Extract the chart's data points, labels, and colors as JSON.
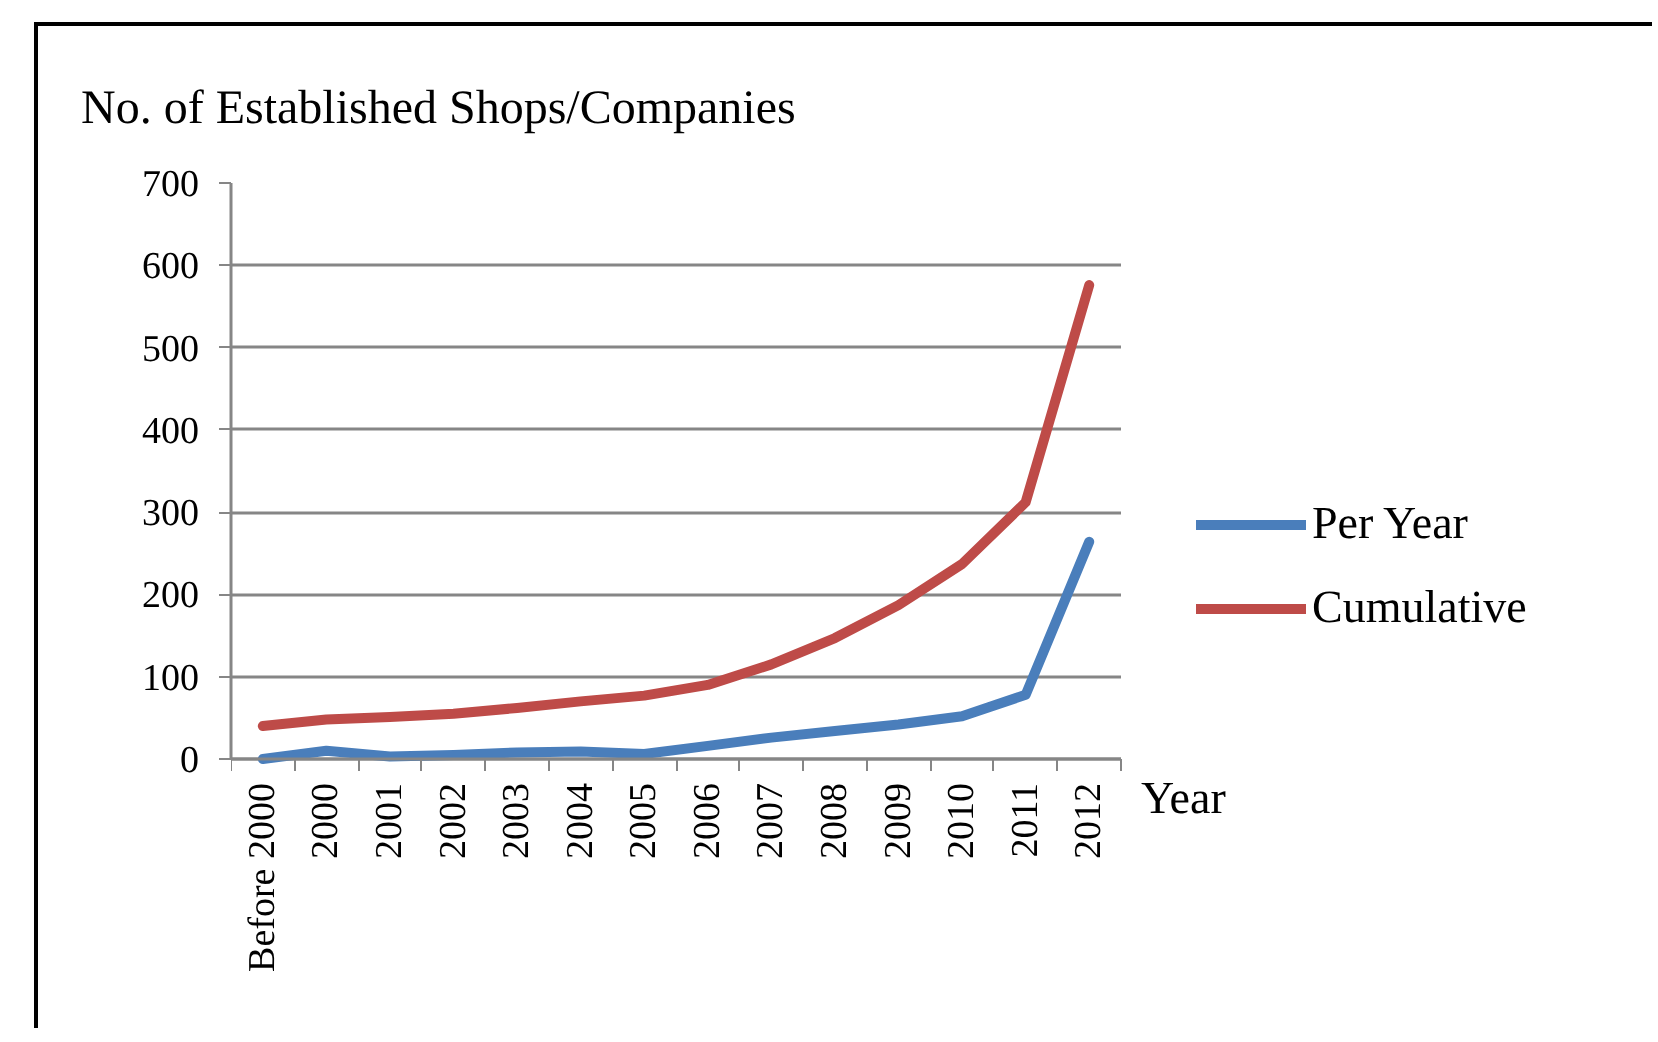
{
  "chart_data": {
    "type": "line",
    "ylabel": "No. of Established Shops/Companies",
    "xlabel": "Year",
    "categories": [
      "Before 2000",
      "2000",
      "2001",
      "2002",
      "2003",
      "2004",
      "2005",
      "2006",
      "2007",
      "2008",
      "2009",
      "2010",
      "2011",
      "2012"
    ],
    "series": [
      {
        "name": "Per Year",
        "color": "#4a7ebb",
        "values": [
          0,
          10,
          3,
          5,
          8,
          9,
          6,
          16,
          26,
          34,
          42,
          52,
          78,
          264
        ]
      },
      {
        "name": "Cumulative",
        "color": "#be4b48",
        "values": [
          40,
          48,
          51,
          55,
          62,
          70,
          77,
          90,
          115,
          147,
          187,
          237,
          312,
          576
        ]
      }
    ],
    "ylim": [
      0,
      700
    ],
    "yticks": [
      0,
      100,
      200,
      300,
      400,
      500,
      600,
      700
    ],
    "grid": "y",
    "legend": "right",
    "line_style": "solid"
  }
}
